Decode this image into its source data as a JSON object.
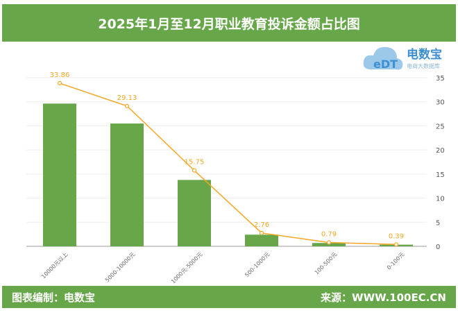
{
  "header": {
    "title": "2025年1月至12月职业教育投诉金额占比图"
  },
  "logo": {
    "name": "电数宝",
    "tagline": "电商大数据库",
    "mark": "eDT"
  },
  "footer": {
    "left": "图表编制：电数宝",
    "right": "来源：WWW.100EC.CN"
  },
  "colors": {
    "bar": "#67a74a",
    "line": "#f5a623",
    "header": "#67a74a"
  },
  "chart_data": {
    "type": "bar+line",
    "categories": [
      "10000元以上",
      "5000-10000元",
      "1000元-5000元",
      "500-1000元",
      "100-500元",
      "0-100元"
    ],
    "series": [
      {
        "type": "bar",
        "values": [
          33.86,
          29.13,
          15.75,
          2.76,
          0.79,
          0.39
        ],
        "axis": "left-hidden",
        "ylim": [
          0,
          40
        ]
      },
      {
        "type": "line",
        "values": [
          33.86,
          29.13,
          15.75,
          2.76,
          0.79,
          0.39
        ],
        "axis": "right",
        "ylim": [
          0,
          35
        ]
      }
    ],
    "right_axis_ticks": [
      0,
      5,
      10,
      15,
      20,
      25,
      30,
      35
    ],
    "grid": true
  }
}
